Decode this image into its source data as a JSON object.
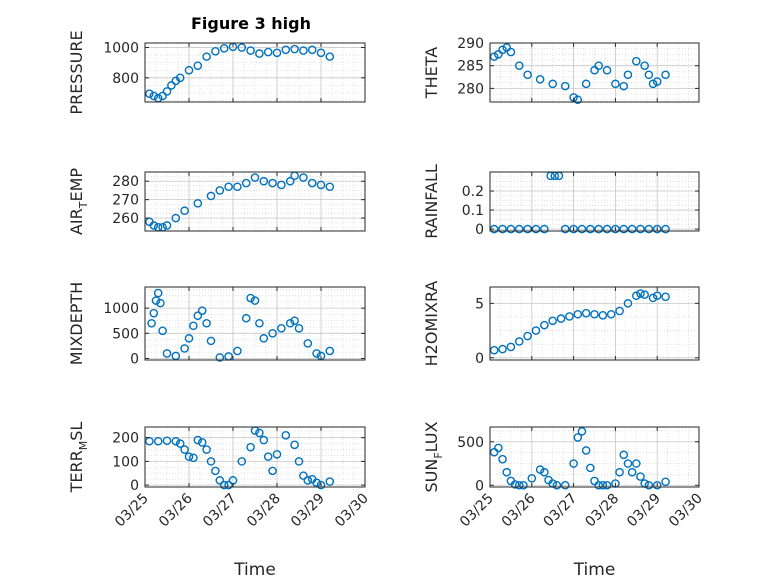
{
  "figure_title": "Figure 3 high",
  "marker_color": "#0072BD",
  "chart_data": [
    {
      "type": "scatter",
      "panel": "pressure",
      "title": "Figure 3 high",
      "ylabel": "PRESSURE",
      "xlabel": "",
      "ylim": [
        640,
        1030
      ],
      "yticks": [
        800,
        1000
      ],
      "ytick_labels": [
        "800",
        "1000"
      ],
      "grid": true,
      "x": [
        25.1,
        25.2,
        25.3,
        25.4,
        25.5,
        25.6,
        25.7,
        25.8,
        26.0,
        26.2,
        26.4,
        26.6,
        26.8,
        27.0,
        27.2,
        27.4,
        27.6,
        27.8,
        28.0,
        28.2,
        28.4,
        28.6,
        28.8,
        29.0,
        29.2
      ],
      "y": [
        695,
        680,
        665,
        680,
        710,
        750,
        780,
        800,
        850,
        880,
        940,
        975,
        995,
        1005,
        1000,
        980,
        960,
        970,
        965,
        985,
        990,
        980,
        985,
        965,
        940
      ]
    },
    {
      "type": "scatter",
      "panel": "theta",
      "ylabel": "THETA",
      "xlabel": "",
      "ylim": [
        277,
        290
      ],
      "yticks": [
        280,
        285,
        290
      ],
      "ytick_labels": [
        "280",
        "285",
        "290"
      ],
      "grid": true,
      "x": [
        25.1,
        25.2,
        25.3,
        25.4,
        25.5,
        25.7,
        25.9,
        26.2,
        26.5,
        26.8,
        27.0,
        27.1,
        27.3,
        27.5,
        27.6,
        27.8,
        28.0,
        28.2,
        28.3,
        28.5,
        28.7,
        28.8,
        28.9,
        29.0,
        29.2
      ],
      "y": [
        287,
        287.5,
        288.5,
        289,
        288,
        285,
        283,
        282,
        281,
        280.5,
        278,
        277.5,
        281,
        284,
        285,
        284,
        281,
        280.5,
        283,
        286,
        285,
        283,
        281,
        281.5,
        283
      ]
    },
    {
      "type": "scatter",
      "panel": "air_temp",
      "ylabel": "AIR_TEMP",
      "xlabel": "",
      "ylim": [
        253,
        285
      ],
      "yticks": [
        260,
        270,
        280
      ],
      "ytick_labels": [
        "260",
        "270",
        "280"
      ],
      "grid": true,
      "x": [
        25.1,
        25.2,
        25.3,
        25.4,
        25.5,
        25.7,
        25.9,
        26.2,
        26.5,
        26.7,
        26.9,
        27.1,
        27.3,
        27.5,
        27.7,
        27.9,
        28.1,
        28.3,
        28.4,
        28.6,
        28.8,
        29.0,
        29.2
      ],
      "y": [
        258,
        256,
        255,
        255,
        256,
        260,
        264,
        268,
        272,
        275,
        277,
        277,
        279,
        282,
        280,
        279,
        278,
        280,
        283,
        282,
        279,
        278,
        277
      ]
    },
    {
      "type": "scatter",
      "panel": "rainfall",
      "ylabel": "RAINFALL",
      "xlabel": "",
      "ylim": [
        -0.01,
        0.3
      ],
      "yticks": [
        0,
        0.1,
        0.2
      ],
      "ytick_labels": [
        "0",
        "0.1",
        "0.2"
      ],
      "grid": true,
      "x": [
        25.1,
        25.3,
        25.5,
        25.7,
        25.9,
        26.1,
        26.3,
        26.45,
        26.55,
        26.65,
        26.8,
        27.0,
        27.2,
        27.4,
        27.6,
        27.8,
        28.0,
        28.2,
        28.4,
        28.6,
        28.8,
        29.0,
        29.2
      ],
      "y": [
        0,
        0,
        0,
        0,
        0,
        0,
        0,
        0.28,
        0.28,
        0.28,
        0,
        0,
        0,
        0,
        0,
        0,
        0,
        0,
        0,
        0,
        0,
        0,
        0
      ]
    },
    {
      "type": "scatter",
      "panel": "mixdepth",
      "ylabel": "MIXDEPTH",
      "xlabel": "",
      "ylim": [
        -30,
        1420
      ],
      "yticks": [
        0,
        500,
        1000
      ],
      "ytick_labels": [
        "0",
        "500",
        "1000"
      ],
      "grid": true,
      "x": [
        25.15,
        25.2,
        25.25,
        25.3,
        25.35,
        25.4,
        25.5,
        25.7,
        25.9,
        26.0,
        26.1,
        26.2,
        26.3,
        26.4,
        26.5,
        26.7,
        26.9,
        27.1,
        27.3,
        27.4,
        27.5,
        27.6,
        27.7,
        27.9,
        28.1,
        28.3,
        28.4,
        28.5,
        28.7,
        28.9,
        29.0,
        29.2
      ],
      "y": [
        700,
        900,
        1150,
        1300,
        1100,
        550,
        100,
        50,
        200,
        400,
        650,
        850,
        950,
        700,
        350,
        20,
        40,
        150,
        800,
        1200,
        1150,
        700,
        400,
        500,
        600,
        700,
        750,
        600,
        300,
        100,
        50,
        150
      ]
    },
    {
      "type": "scatter",
      "panel": "h2omixra",
      "ylabel": "H2OMIXRA",
      "xlabel": "",
      "ylim": [
        -0.2,
        6.5
      ],
      "yticks": [
        0,
        5
      ],
      "ytick_labels": [
        "0",
        "5"
      ],
      "grid": true,
      "x": [
        25.1,
        25.3,
        25.5,
        25.7,
        25.9,
        26.1,
        26.3,
        26.5,
        26.7,
        26.9,
        27.1,
        27.3,
        27.5,
        27.7,
        27.9,
        28.1,
        28.3,
        28.5,
        28.6,
        28.7,
        28.9,
        29.0,
        29.2
      ],
      "y": [
        0.7,
        0.8,
        1.0,
        1.5,
        2.0,
        2.5,
        3.0,
        3.4,
        3.6,
        3.8,
        4.0,
        4.1,
        4.0,
        3.9,
        4.0,
        4.3,
        5.0,
        5.7,
        5.9,
        5.8,
        5.5,
        5.7,
        5.6
      ]
    },
    {
      "type": "scatter",
      "panel": "terr_msl",
      "ylabel": "TERR_MSL",
      "xlabel": "Time",
      "ylim": [
        -8,
        245
      ],
      "yticks": [
        0,
        100,
        200
      ],
      "ytick_labels": [
        "0",
        "100",
        "200"
      ],
      "grid": true,
      "xticks": [
        25,
        26,
        27,
        28,
        29,
        30
      ],
      "xtick_labels": [
        "03/25",
        "03/26",
        "03/27",
        "03/28",
        "03/29",
        "03/30"
      ],
      "x": [
        25.1,
        25.3,
        25.5,
        25.7,
        25.8,
        25.9,
        26.0,
        26.1,
        26.2,
        26.3,
        26.4,
        26.5,
        26.6,
        26.7,
        26.8,
        26.9,
        27.0,
        27.2,
        27.4,
        27.5,
        27.6,
        27.7,
        27.8,
        27.9,
        28.0,
        28.2,
        28.4,
        28.5,
        28.6,
        28.7,
        28.8,
        28.9,
        29.0,
        29.2
      ],
      "y": [
        185,
        185,
        187,
        185,
        175,
        150,
        120,
        115,
        190,
        180,
        150,
        100,
        60,
        20,
        0,
        0,
        20,
        100,
        160,
        230,
        220,
        190,
        120,
        60,
        130,
        210,
        170,
        100,
        40,
        20,
        25,
        10,
        0,
        15
      ]
    },
    {
      "type": "scatter",
      "panel": "sun_flux",
      "ylabel": "SUN_FLUX",
      "xlabel": "Time",
      "ylim": [
        -20,
        670
      ],
      "yticks": [
        0,
        500
      ],
      "ytick_labels": [
        "0",
        "500"
      ],
      "grid": true,
      "xticks": [
        25,
        26,
        27,
        28,
        29,
        30
      ],
      "xtick_labels": [
        "03/25",
        "03/26",
        "03/27",
        "03/28",
        "03/29",
        "03/30"
      ],
      "x": [
        25.1,
        25.2,
        25.3,
        25.4,
        25.5,
        25.6,
        25.7,
        25.8,
        26.0,
        26.2,
        26.3,
        26.4,
        26.5,
        26.6,
        26.8,
        27.0,
        27.1,
        27.2,
        27.3,
        27.4,
        27.5,
        27.6,
        27.7,
        27.8,
        28.0,
        28.1,
        28.2,
        28.3,
        28.4,
        28.5,
        28.6,
        28.7,
        28.8,
        29.0,
        29.2
      ],
      "y": [
        380,
        430,
        300,
        150,
        50,
        10,
        0,
        0,
        80,
        180,
        150,
        60,
        20,
        0,
        0,
        250,
        550,
        620,
        400,
        200,
        50,
        0,
        0,
        0,
        20,
        150,
        350,
        250,
        150,
        250,
        100,
        20,
        0,
        0,
        40
      ]
    }
  ]
}
